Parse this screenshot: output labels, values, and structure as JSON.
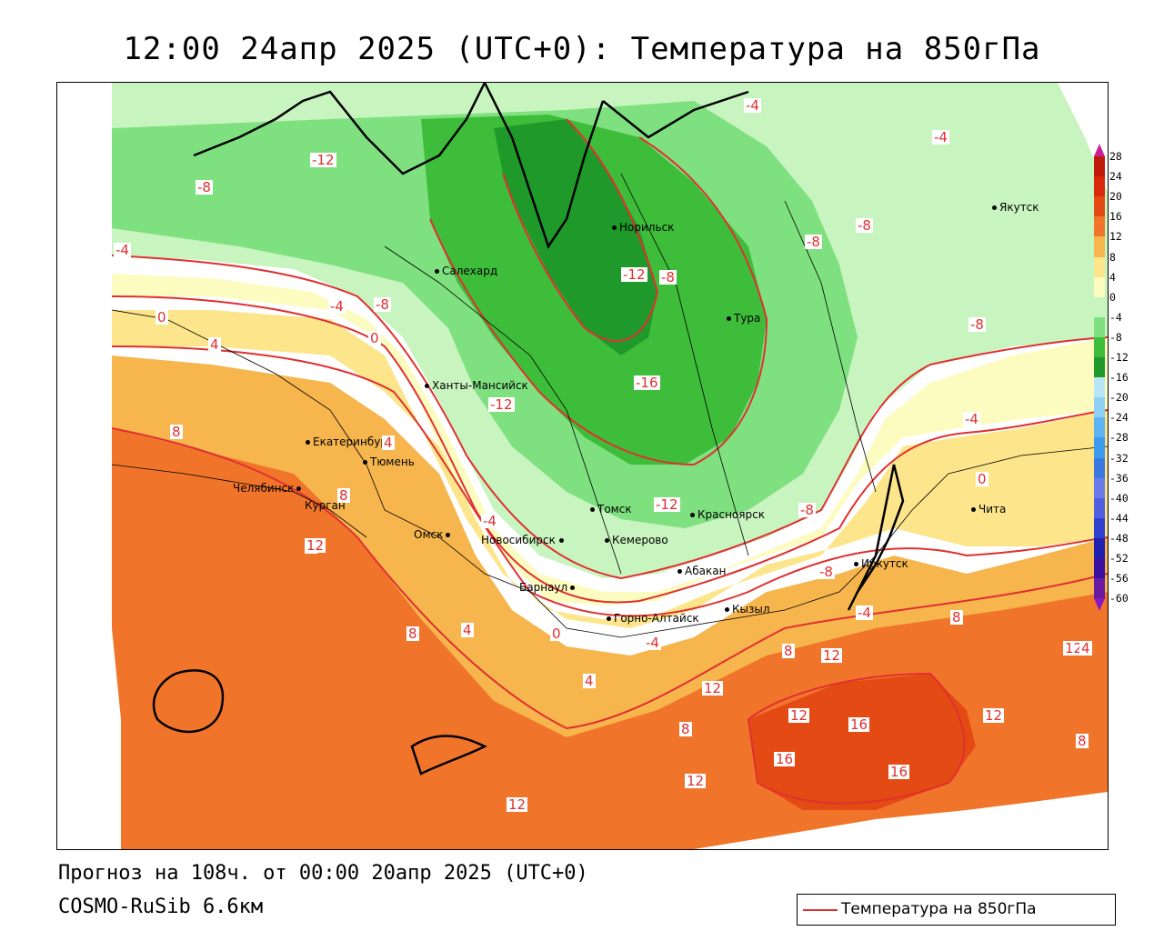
{
  "title": "12:00 24апр 2025 (UTC+0): Температура на 850гПа",
  "forecast_line": "Прогноз на 108ч. от 00:00 20апр 2025 (UTC+0)",
  "model_line": "COSMO-RuSib 6.6км",
  "legend": {
    "label": "Температура на 850гПа",
    "line_color": "#e03030"
  },
  "colors": {
    "-60": "#6a1aa0",
    "-56": "#3a10a0",
    "-52": "#2020b0",
    "-48": "#3040d0",
    "-44": "#5060e0",
    "-40": "#6a7ae8",
    "-36": "#3a7ae0",
    "-32": "#3c9aef",
    "-28": "#5cb4f2",
    "-24": "#8fd0f4",
    "-20": "#b8e6f4",
    "-16": "#1f9a2a",
    "-12": "#3dbd3a",
    "-8": "#7fe080",
    "-4": "#c8f4c0",
    "0": "#fdfcc0",
    "4": "#fce58a",
    "8": "#f6b54d",
    "12": "#f0752a",
    "16": "#e44a14",
    "20": "#d82a0a",
    "24": "#c01a0a",
    "28": "#a00808"
  },
  "colorbar_ticks": [
    "28",
    "24",
    "20",
    "16",
    "12",
    "8",
    "4",
    "0",
    "-4",
    "-8",
    "-12",
    "-16",
    "-20",
    "-24",
    "-28",
    "-32",
    "-36",
    "-40",
    "-44",
    "-48",
    "-52",
    "-56",
    "-60"
  ],
  "cities": [
    {
      "name": "Норильск"
    },
    {
      "name": "Якутск"
    },
    {
      "name": "Салехард"
    },
    {
      "name": "Тура"
    },
    {
      "name": "Ханты-Мансийск"
    },
    {
      "name": "Екатеринбург"
    },
    {
      "name": "Тюмень"
    },
    {
      "name": "Челябинск"
    },
    {
      "name": "Курган"
    },
    {
      "name": "Омск"
    },
    {
      "name": "Новосибирск"
    },
    {
      "name": "Томск"
    },
    {
      "name": "Кемерово"
    },
    {
      "name": "Красноярск"
    },
    {
      "name": "Абакан"
    },
    {
      "name": "Барнаул"
    },
    {
      "name": "Горно-Алтайск"
    },
    {
      "name": "Кызыл"
    },
    {
      "name": "Иркутск"
    },
    {
      "name": "Чита"
    }
  ],
  "contour_labels": [
    "-4",
    "-4",
    "-12",
    "-8",
    "-4",
    "-8",
    "-8",
    "-8",
    "-12",
    "-8",
    "-4",
    "-8",
    "0",
    "4",
    "0",
    "-16",
    "-12",
    "-4",
    "8",
    "4",
    "8",
    "-4",
    "-12",
    "-8",
    "0",
    "4",
    "12",
    "-8",
    "8",
    "4",
    "0",
    "-4",
    "12",
    "4",
    "8",
    "-4",
    "8",
    "12",
    "4",
    "12",
    "12",
    "16",
    "8",
    "12",
    "16",
    "16",
    "12",
    "12",
    "8"
  ]
}
